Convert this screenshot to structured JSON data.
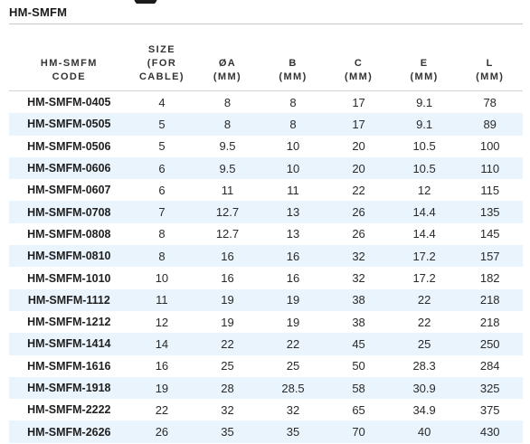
{
  "document": {
    "title": "HM-SMFM"
  },
  "table": {
    "headers": [
      {
        "line1": "HM-SMFM",
        "line2": "CODE"
      },
      {
        "line1": "SIZE",
        "line2": "(FOR CABLE)"
      },
      {
        "line1": "ØA",
        "line2": "(MM)"
      },
      {
        "line1": "B",
        "line2": "(MM)"
      },
      {
        "line1": "C",
        "line2": "(MM)"
      },
      {
        "line1": "E",
        "line2": "(MM)"
      },
      {
        "line1": "L",
        "line2": "(MM)"
      }
    ],
    "rows": [
      [
        "HM-SMFM-0405",
        "4",
        "8",
        "8",
        "17",
        "9.1",
        "78"
      ],
      [
        "HM-SMFM-0505",
        "5",
        "8",
        "8",
        "17",
        "9.1",
        "89"
      ],
      [
        "HM-SMFM-0506",
        "5",
        "9.5",
        "10",
        "20",
        "10.5",
        "100"
      ],
      [
        "HM-SMFM-0606",
        "6",
        "9.5",
        "10",
        "20",
        "10.5",
        "110"
      ],
      [
        "HM-SMFM-0607",
        "6",
        "11",
        "11",
        "22",
        "12",
        "115"
      ],
      [
        "HM-SMFM-0708",
        "7",
        "12.7",
        "13",
        "26",
        "14.4",
        "135"
      ],
      [
        "HM-SMFM-0808",
        "8",
        "12.7",
        "13",
        "26",
        "14.4",
        "145"
      ],
      [
        "HM-SMFM-0810",
        "8",
        "16",
        "16",
        "32",
        "17.2",
        "157"
      ],
      [
        "HM-SMFM-1010",
        "10",
        "16",
        "16",
        "32",
        "17.2",
        "182"
      ],
      [
        "HM-SMFM-1112",
        "11",
        "19",
        "19",
        "38",
        "22",
        "218"
      ],
      [
        "HM-SMFM-1212",
        "12",
        "19",
        "19",
        "38",
        "22",
        "218"
      ],
      [
        "HM-SMFM-1414",
        "14",
        "22",
        "22",
        "45",
        "25",
        "250"
      ],
      [
        "HM-SMFM-1616",
        "16",
        "25",
        "25",
        "50",
        "28.3",
        "284"
      ],
      [
        "HM-SMFM-1918",
        "19",
        "28",
        "28.5",
        "58",
        "30.9",
        "325"
      ],
      [
        "HM-SMFM-2222",
        "22",
        "32",
        "32",
        "65",
        "34.9",
        "375"
      ],
      [
        "HM-SMFM-2626",
        "26",
        "35",
        "35",
        "70",
        "40",
        "430"
      ]
    ]
  },
  "colors": {
    "row_shade": "#e9f4fc",
    "rule": "#c8c8c8"
  }
}
